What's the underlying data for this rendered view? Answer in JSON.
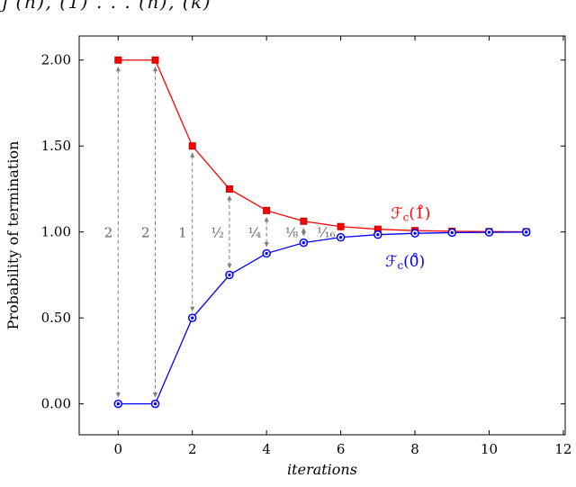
{
  "page": {
    "background": "#ffffff"
  },
  "top_cropped_text": "ȷ (n), (1) . . . (n), (k)",
  "chart_data": {
    "type": "line",
    "title": "",
    "xlabel": "iterations",
    "ylabel": "Probability of termination",
    "x": [
      0,
      1,
      2,
      3,
      4,
      5,
      6,
      7,
      8,
      9,
      10,
      11
    ],
    "xticks": [
      0,
      2,
      4,
      6,
      8,
      10,
      12
    ],
    "yticks": [
      0,
      0.5,
      1,
      1.5,
      2
    ],
    "xlim": [
      -1.05,
      12.05
    ],
    "ylim": [
      -0.18,
      2.14
    ],
    "grid": false,
    "frame_color": "#000000",
    "series": [
      {
        "name": "F_c(1ring)",
        "marker": "square",
        "color": "#ff0000",
        "edge": "#c00000",
        "values": [
          2,
          2,
          1.5,
          1.25,
          1.125,
          1.0625,
          1.03125,
          1.015625,
          1.0078125,
          1.00390625,
          1.001953125,
          1.0009765625
        ]
      },
      {
        "name": "F_c(0ring)",
        "marker": "circle",
        "color": "#0000ff",
        "edge": "#0000ff",
        "values": [
          0,
          0,
          0.5,
          0.75,
          0.875,
          0.9375,
          0.96875,
          0.984375,
          0.9921875,
          0.99609375,
          0.998046875,
          0.9990234375
        ]
      }
    ],
    "gap_annotations": {
      "color": "#808080",
      "label_color": "#666666",
      "label_y": 0.97,
      "items": [
        {
          "x": 0,
          "label": "2"
        },
        {
          "x": 1,
          "label": "2"
        },
        {
          "x": 2,
          "label": "1"
        },
        {
          "x": 3,
          "label": "½"
        },
        {
          "x": 4,
          "label": "¼"
        },
        {
          "x": 5,
          "label": "⅛"
        },
        {
          "x": 6,
          "label": "¹⁄₁₆"
        }
      ]
    },
    "legend": [
      {
        "prefix": "ℱ",
        "sub": "c",
        "suffix": "(1̊)",
        "color": "#ff0000",
        "x": 7.35,
        "y": 1.08
      },
      {
        "prefix": "ℱ",
        "sub": "c",
        "suffix": "(0̊)",
        "color": "#0000ff",
        "x": 7.2,
        "y": 0.8
      }
    ]
  }
}
